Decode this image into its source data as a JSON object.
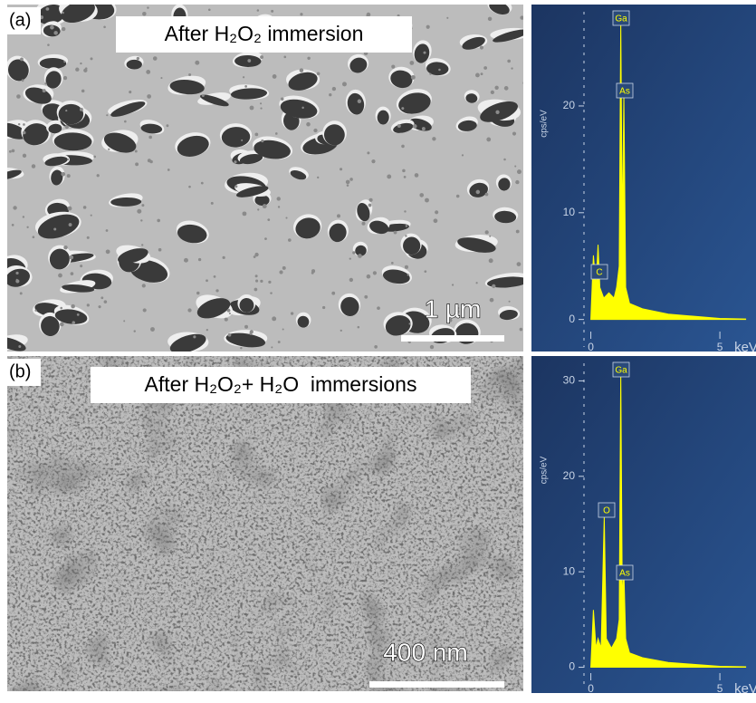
{
  "panels": [
    {
      "label": "(a)",
      "caption": "After H₂O₂ immersion",
      "scale_bar": "1 µm"
    },
    {
      "label": "(b)",
      "caption": "After H₂O₂+ H₂O  immersions",
      "scale_bar": "400 nm"
    }
  ],
  "chart_data": [
    {
      "type": "area",
      "y_label": "cps/eV",
      "x_label": "keV",
      "color": "#ffff00",
      "x": [
        0,
        0.1,
        0.2,
        0.28,
        0.35,
        0.5,
        0.7,
        0.9,
        1.0,
        1.1,
        1.16,
        1.22,
        1.28,
        1.35,
        1.5,
        2,
        3,
        4,
        5,
        6
      ],
      "values": [
        0,
        6,
        3,
        7,
        3,
        2,
        2.5,
        2,
        3,
        5,
        28,
        8,
        21,
        3,
        1.5,
        1,
        0.5,
        0.3,
        0.1,
        0.05
      ],
      "xlim": [
        -2.3,
        6.4
      ],
      "ylim": [
        -3,
        29.5
      ],
      "xticks": [
        0,
        5
      ],
      "yticks": [
        0,
        10,
        20
      ],
      "annotations": [
        "Ga",
        "As",
        "C"
      ]
    },
    {
      "type": "area",
      "y_label": "cps/eV",
      "x_label": "keV",
      "color": "#ffff00",
      "x": [
        0,
        0.1,
        0.2,
        0.28,
        0.4,
        0.52,
        0.6,
        0.8,
        1.0,
        1.1,
        1.16,
        1.22,
        1.28,
        1.35,
        1.5,
        2,
        3,
        4,
        5,
        6
      ],
      "values": [
        0,
        6,
        2,
        3,
        2,
        15.8,
        3,
        2,
        3,
        5,
        31,
        7,
        10,
        3,
        1.5,
        1,
        0.5,
        0.3,
        0.1,
        0.05
      ],
      "xlim": [
        -2.3,
        6.4
      ],
      "ylim": [
        -2.7,
        32.6
      ],
      "xticks": [
        0,
        5
      ],
      "yticks": [
        0,
        10,
        20,
        30
      ],
      "annotations": [
        "Ga",
        "O",
        "As"
      ]
    }
  ]
}
